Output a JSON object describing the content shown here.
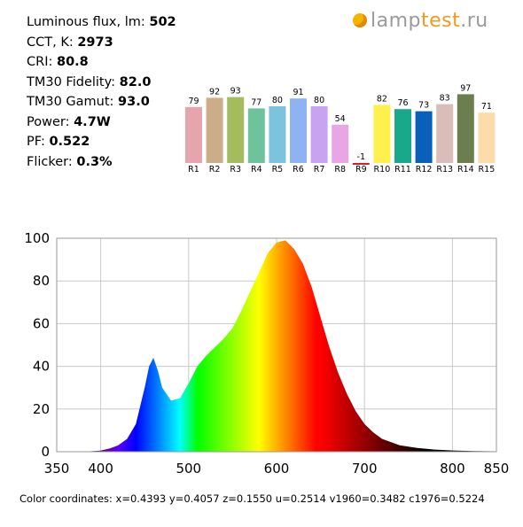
{
  "logo": {
    "text_main": "lamp",
    "text_accent": "test",
    "text_tail": ".ru",
    "icon": "sun-icon"
  },
  "stats": [
    {
      "label": "Luminous flux, lm:",
      "value": "502"
    },
    {
      "label": "CCT, K:",
      "value": "2973"
    },
    {
      "label": "CRI:",
      "value": "80.8"
    },
    {
      "label": "TM30 Fidelity:",
      "value": "82.0"
    },
    {
      "label": "TM30 Gamut:",
      "value": "93.0"
    },
    {
      "label": "Power:",
      "value": "4.7W"
    },
    {
      "label": "PF:",
      "value": "0.522"
    },
    {
      "label": "Flicker:",
      "value": "0.3%"
    }
  ],
  "chart_data": [
    {
      "type": "bar",
      "categories": [
        "R1",
        "R2",
        "R3",
        "R4",
        "R5",
        "R6",
        "R7",
        "R8",
        "R9",
        "R10",
        "R11",
        "R12",
        "R13",
        "R14",
        "R15"
      ],
      "values": [
        79,
        92,
        93,
        77,
        80,
        91,
        80,
        54,
        -1,
        82,
        76,
        73,
        83,
        97,
        71
      ],
      "colors": [
        "#e6a5ad",
        "#cbae88",
        "#a4bb5e",
        "#6fc39c",
        "#7cc3e0",
        "#8fb2f2",
        "#c8a4f0",
        "#e9a6e6",
        "#e0182c",
        "#fff04e",
        "#17a98a",
        "#0a5fb8",
        "#dabdb8",
        "#6b7e4e",
        "#fcdcaa"
      ],
      "ylim": [
        -1,
        100
      ]
    },
    {
      "type": "area",
      "x": [
        350,
        380,
        400,
        410,
        420,
        430,
        440,
        450,
        455,
        460,
        465,
        470,
        480,
        490,
        500,
        510,
        520,
        530,
        540,
        550,
        560,
        570,
        580,
        590,
        600,
        610,
        620,
        630,
        640,
        650,
        660,
        670,
        680,
        690,
        700,
        710,
        720,
        740,
        760,
        780,
        800,
        825,
        850
      ],
      "y": [
        0,
        0,
        0.5,
        1.5,
        3,
        6,
        13,
        30,
        40,
        44,
        38,
        30,
        24,
        25,
        32,
        40,
        45,
        49,
        53,
        58,
        66,
        75,
        84,
        93,
        98,
        99,
        95,
        88,
        77,
        63,
        49,
        37,
        27,
        19,
        13,
        9,
        6,
        3,
        1.8,
        1,
        0.6,
        0.3,
        0.2
      ],
      "xlim": [
        350,
        850
      ],
      "ylim": [
        0,
        100
      ],
      "xticks": [
        350,
        400,
        500,
        600,
        700,
        800,
        850
      ],
      "yticks": [
        0,
        20,
        40,
        60,
        80,
        100
      ],
      "grid": true
    }
  ],
  "footer": {
    "coordinates": "Color coordinates: x=0.4393 y=0.4057 z=0.1550 u=0.2514 v1960=0.3482 c1976=0.5224"
  }
}
